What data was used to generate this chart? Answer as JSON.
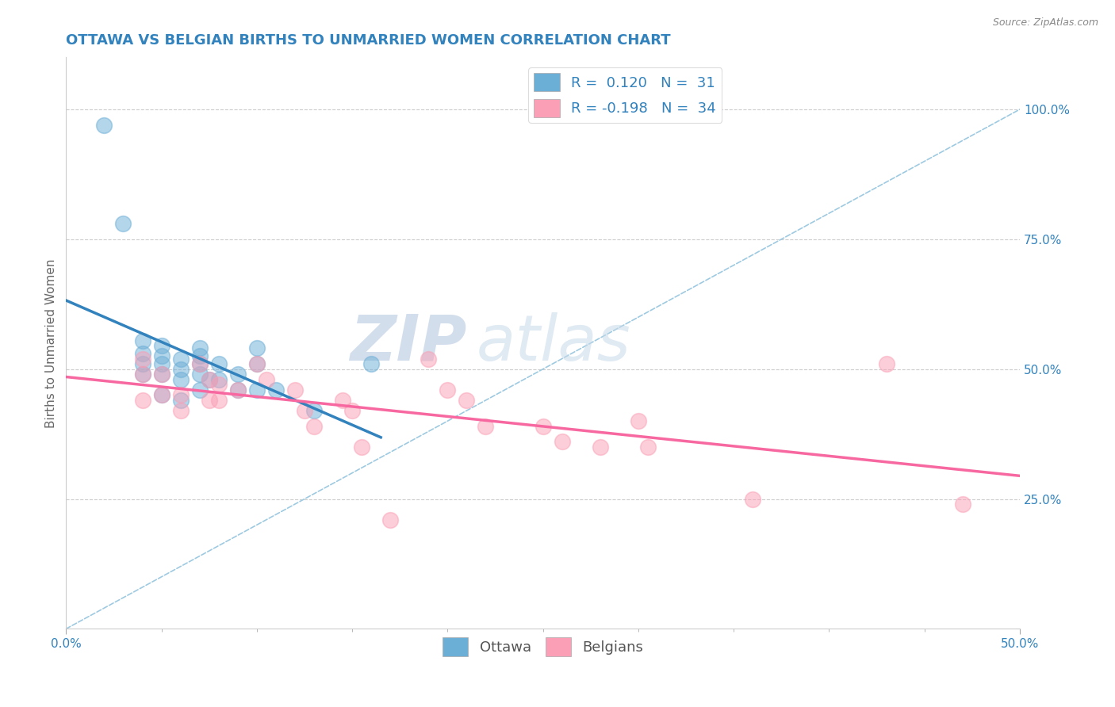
{
  "title": "OTTAWA VS BELGIAN BIRTHS TO UNMARRIED WOMEN CORRELATION CHART",
  "source": "Source: ZipAtlas.com",
  "ylabel": "Births to Unmarried Women",
  "xlim": [
    0.0,
    0.5
  ],
  "ylim": [
    0.0,
    1.1
  ],
  "xtick_labels": [
    "0.0%",
    "50.0%"
  ],
  "xtick_positions": [
    0.0,
    0.5
  ],
  "ytick_labels_right": [
    "25.0%",
    "50.0%",
    "75.0%",
    "100.0%"
  ],
  "ytick_positions_right": [
    0.25,
    0.5,
    0.75,
    1.0
  ],
  "ottawa_color": "#6baed6",
  "belgians_color": "#fa9fb5",
  "ottawa_R": 0.12,
  "ottawa_N": 31,
  "belgians_R": -0.198,
  "belgians_N": 34,
  "legend_color": "#3182bd",
  "regression_line_color_ottawa": "#3182bd",
  "regression_line_color_belgians": "#f768a1",
  "diagonal_line_color": "#9ecae1",
  "background_color": "#ffffff",
  "watermark_text": "ZIPatlas",
  "watermark_color": "#c6dbef",
  "ottawa_scatter_x": [
    0.02,
    0.03,
    0.04,
    0.04,
    0.04,
    0.04,
    0.05,
    0.05,
    0.05,
    0.05,
    0.05,
    0.06,
    0.06,
    0.06,
    0.06,
    0.07,
    0.07,
    0.07,
    0.07,
    0.07,
    0.075,
    0.08,
    0.08,
    0.09,
    0.09,
    0.1,
    0.1,
    0.1,
    0.11,
    0.13,
    0.16
  ],
  "ottawa_scatter_y": [
    0.97,
    0.78,
    0.555,
    0.53,
    0.51,
    0.49,
    0.545,
    0.525,
    0.51,
    0.49,
    0.45,
    0.52,
    0.5,
    0.48,
    0.44,
    0.54,
    0.525,
    0.51,
    0.49,
    0.46,
    0.48,
    0.51,
    0.48,
    0.49,
    0.46,
    0.54,
    0.51,
    0.46,
    0.46,
    0.42,
    0.51
  ],
  "belgians_scatter_x": [
    0.04,
    0.04,
    0.04,
    0.05,
    0.05,
    0.06,
    0.06,
    0.07,
    0.075,
    0.075,
    0.08,
    0.08,
    0.09,
    0.1,
    0.105,
    0.12,
    0.125,
    0.13,
    0.145,
    0.15,
    0.155,
    0.17,
    0.19,
    0.2,
    0.21,
    0.22,
    0.25,
    0.26,
    0.28,
    0.3,
    0.305,
    0.36,
    0.43,
    0.47
  ],
  "belgians_scatter_y": [
    0.52,
    0.49,
    0.44,
    0.49,
    0.45,
    0.45,
    0.42,
    0.51,
    0.48,
    0.44,
    0.47,
    0.44,
    0.46,
    0.51,
    0.48,
    0.46,
    0.42,
    0.39,
    0.44,
    0.42,
    0.35,
    0.21,
    0.52,
    0.46,
    0.44,
    0.39,
    0.39,
    0.36,
    0.35,
    0.4,
    0.35,
    0.25,
    0.51,
    0.24
  ],
  "title_fontsize": 13,
  "axis_label_fontsize": 11,
  "tick_fontsize": 11,
  "legend_fontsize": 13,
  "scatter_size": 200,
  "scatter_alpha": 0.5,
  "scatter_linewidth": 1.2
}
